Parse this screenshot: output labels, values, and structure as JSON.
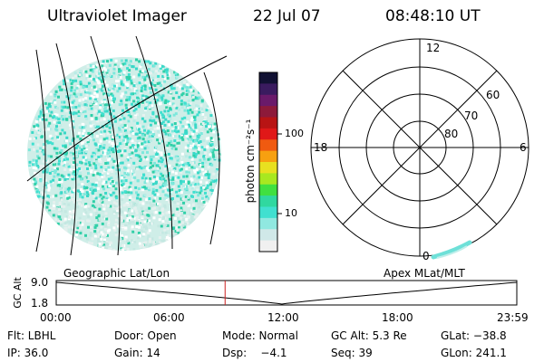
{
  "header": {
    "instrument": "Ultraviolet Imager",
    "date": "22 Jul 07",
    "time": "08:48:10 UT"
  },
  "colorbar": {
    "unit_label": "photon cm⁻²s⁻¹",
    "ticks": [
      "100",
      "10"
    ],
    "colors": [
      "#111133",
      "#3a1b5f",
      "#6a1a6a",
      "#8d1a3a",
      "#b81414",
      "#e01818",
      "#f05a10",
      "#f7a010",
      "#e8e020",
      "#a8e820",
      "#40e040",
      "#30d8a0",
      "#40e0d0",
      "#90e8e0",
      "#d0e8e8",
      "#f0f0f0"
    ]
  },
  "image_panel": {
    "label": "Geographic Lat/Lon"
  },
  "polar_panel": {
    "label": "Apex MLat/MLT",
    "mlt_labels": {
      "top": "12",
      "left": "18",
      "right": "6",
      "bottom": "0"
    },
    "lat_labels": [
      "60",
      "70",
      "80"
    ]
  },
  "altitude_plot": {
    "ylabel": "GC Alt",
    "y_ticks": [
      "9.0",
      "1.8"
    ],
    "x_ticks": [
      "00:00",
      "06:00",
      "12:00",
      "18:00",
      "23:59"
    ],
    "marker_color": "#cc2222"
  },
  "footer": {
    "filter": "Flt: LBHL",
    "door": "Door: Open",
    "mode": "Mode: Normal",
    "gc_alt": "GC Alt: 5.3 Re",
    "glat": "GLat: −38.8",
    "ip": "IP: 36.0",
    "gain": "Gain: 14",
    "dsp": "Dsp:    −4.1",
    "seq": "Seq: 39",
    "glon": "GLon: 241.1"
  }
}
